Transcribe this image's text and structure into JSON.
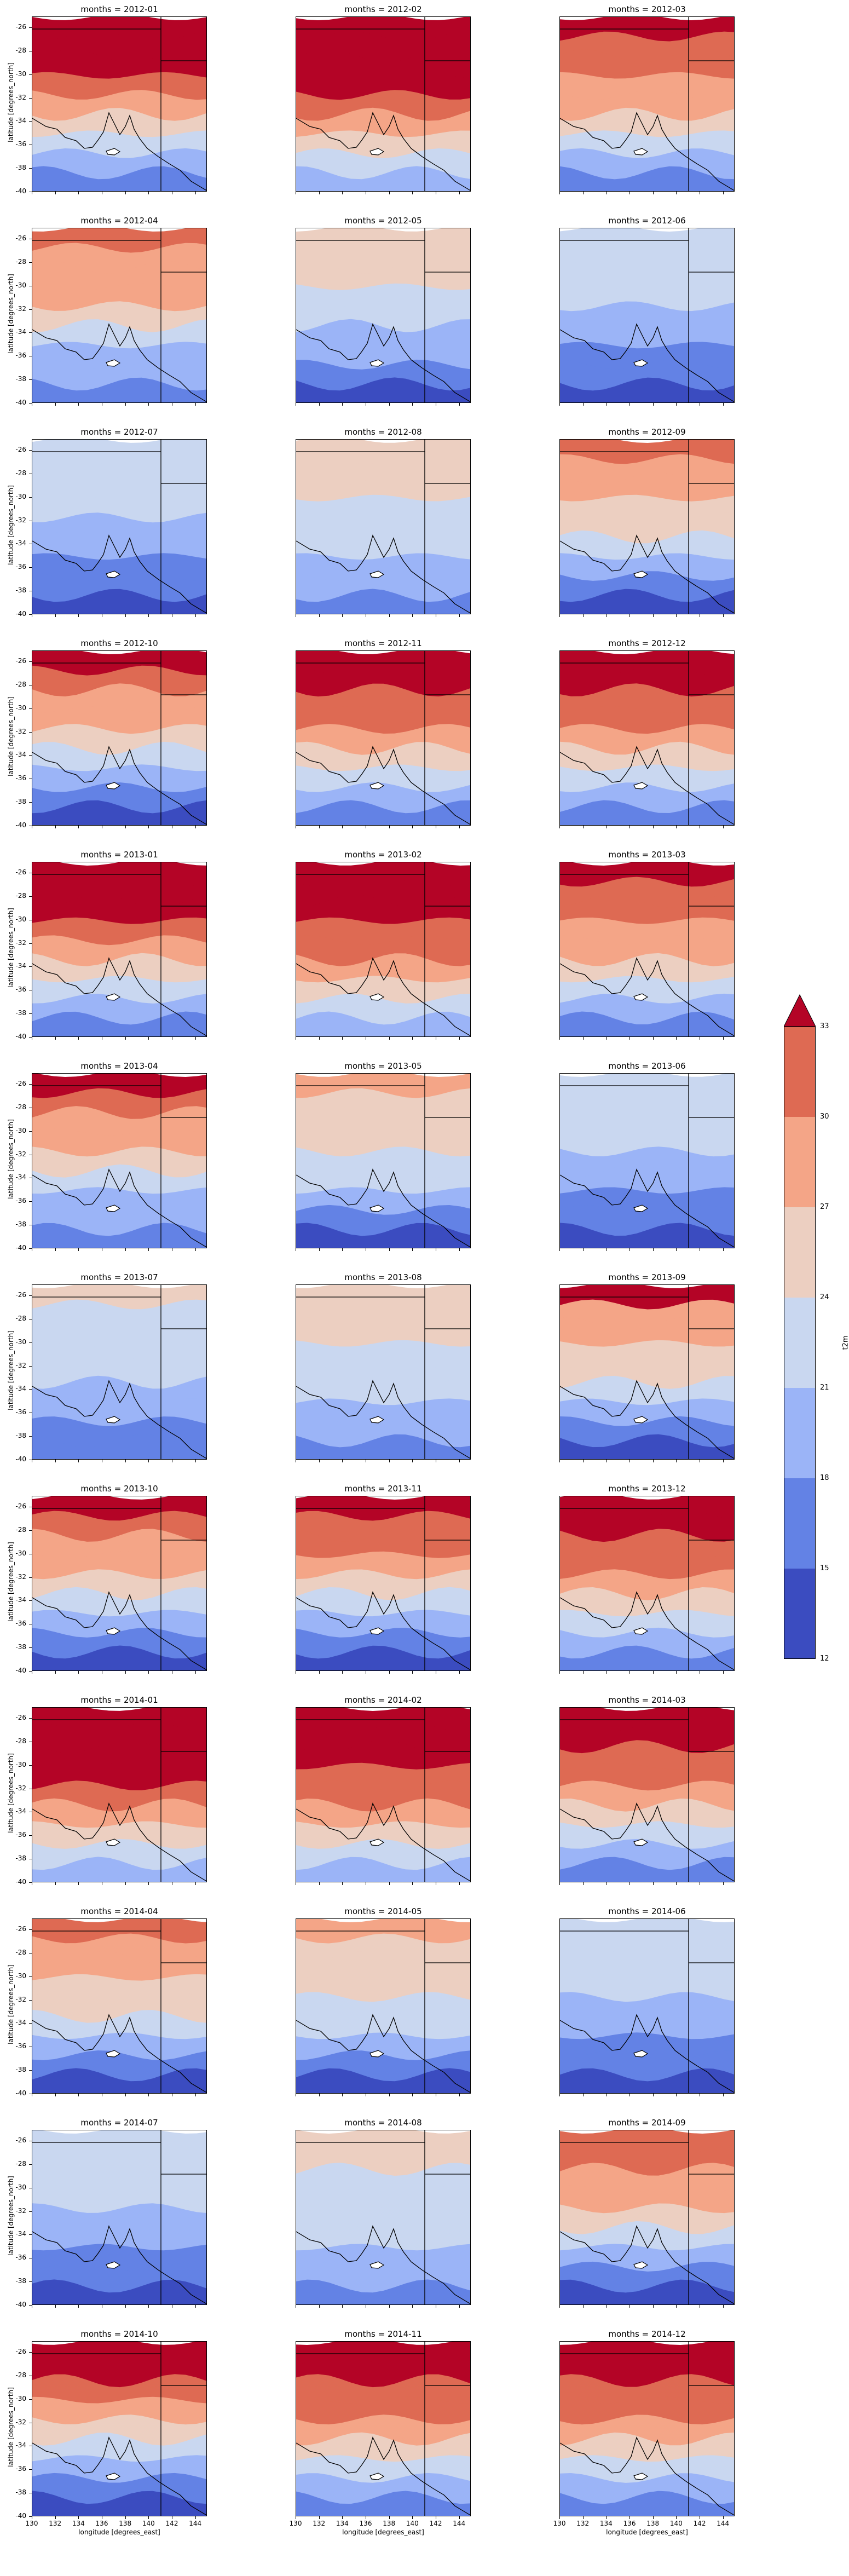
{
  "chart_data": {
    "type": "heatmap",
    "facet_title_prefix": "months = ",
    "months": [
      "2012-01",
      "2012-02",
      "2012-03",
      "2012-04",
      "2012-05",
      "2012-06",
      "2012-07",
      "2012-08",
      "2012-09",
      "2012-10",
      "2012-11",
      "2012-12",
      "2013-01",
      "2013-02",
      "2013-03",
      "2013-04",
      "2013-05",
      "2013-06",
      "2013-07",
      "2013-08",
      "2013-09",
      "2013-10",
      "2013-11",
      "2013-12",
      "2014-01",
      "2014-02",
      "2014-03",
      "2014-04",
      "2014-05",
      "2014-06",
      "2014-07",
      "2014-08",
      "2014-09",
      "2014-10",
      "2014-11",
      "2014-12"
    ],
    "north_south_levels": [
      [
        33,
        33,
        33,
        30,
        27,
        24,
        21,
        18,
        15
      ],
      [
        33,
        33,
        33,
        33,
        30,
        27,
        24,
        21,
        18
      ],
      [
        33,
        30,
        30,
        27,
        27,
        24,
        21,
        18,
        15
      ],
      [
        30,
        27,
        27,
        27,
        24,
        21,
        18,
        18,
        15
      ],
      [
        24,
        24,
        24,
        21,
        21,
        18,
        18,
        15,
        12
      ],
      [
        21,
        21,
        21,
        21,
        18,
        18,
        15,
        15,
        12
      ],
      [
        21,
        21,
        21,
        21,
        18,
        18,
        15,
        15,
        12
      ],
      [
        24,
        24,
        24,
        21,
        21,
        21,
        18,
        18,
        15
      ],
      [
        30,
        27,
        27,
        24,
        24,
        21,
        18,
        15,
        12
      ],
      [
        33,
        30,
        27,
        27,
        24,
        21,
        18,
        15,
        12
      ],
      [
        33,
        33,
        30,
        30,
        27,
        24,
        21,
        18,
        15
      ],
      [
        33,
        33,
        30,
        30,
        27,
        24,
        21,
        18,
        15
      ],
      [
        33,
        33,
        33,
        30,
        27,
        24,
        21,
        18,
        15
      ],
      [
        33,
        33,
        33,
        30,
        30,
        27,
        24,
        21,
        18
      ],
      [
        33,
        30,
        30,
        27,
        27,
        24,
        21,
        18,
        15
      ],
      [
        33,
        30,
        27,
        27,
        24,
        21,
        18,
        18,
        15
      ],
      [
        27,
        24,
        24,
        24,
        21,
        21,
        18,
        15,
        12
      ],
      [
        21,
        21,
        21,
        21,
        18,
        18,
        15,
        15,
        12
      ],
      [
        24,
        21,
        21,
        21,
        21,
        18,
        18,
        15,
        15
      ],
      [
        24,
        24,
        24,
        21,
        21,
        21,
        18,
        18,
        15
      ],
      [
        33,
        27,
        27,
        24,
        24,
        21,
        18,
        15,
        12
      ],
      [
        33,
        30,
        27,
        27,
        24,
        21,
        18,
        15,
        12
      ],
      [
        33,
        30,
        30,
        27,
        24,
        21,
        18,
        15,
        12
      ],
      [
        33,
        33,
        30,
        30,
        27,
        24,
        21,
        18,
        15
      ],
      [
        33,
        33,
        33,
        33,
        30,
        27,
        24,
        21,
        18
      ],
      [
        33,
        33,
        33,
        30,
        30,
        27,
        24,
        21,
        18
      ],
      [
        33,
        33,
        30,
        30,
        27,
        24,
        21,
        18,
        15
      ],
      [
        30,
        27,
        27,
        24,
        24,
        21,
        18,
        15,
        12
      ],
      [
        27,
        24,
        24,
        24,
        21,
        21,
        18,
        15,
        12
      ],
      [
        21,
        21,
        21,
        21,
        18,
        18,
        15,
        15,
        12
      ],
      [
        21,
        21,
        21,
        21,
        18,
        18,
        15,
        15,
        12
      ],
      [
        24,
        24,
        21,
        21,
        21,
        21,
        18,
        18,
        15
      ],
      [
        30,
        30,
        27,
        27,
        24,
        21,
        18,
        15,
        12
      ],
      [
        33,
        33,
        30,
        27,
        24,
        21,
        18,
        15,
        12
      ],
      [
        33,
        33,
        30,
        30,
        27,
        24,
        21,
        18,
        15
      ],
      [
        33,
        33,
        30,
        30,
        27,
        24,
        21,
        18,
        15
      ]
    ],
    "xlim": [
      130,
      145
    ],
    "ylim": [
      -40,
      -25
    ],
    "x_ticks": [
      "130",
      "132",
      "134",
      "136",
      "138",
      "140",
      "142",
      "144"
    ],
    "y_ticks": [
      "-26",
      "-28",
      "-30",
      "-32",
      "-34",
      "-36",
      "-38",
      "-40"
    ],
    "xlabel": "longitude [degrees_east]",
    "ylabel": "latitude [degrees_north]",
    "colorbar": {
      "levels": [
        12,
        15,
        18,
        21,
        24,
        27,
        30,
        33
      ],
      "tick_labels": [
        "12",
        "15",
        "18",
        "21",
        "24",
        "27",
        "30",
        "33"
      ],
      "colors": [
        "#3b4cc0",
        "#6382e5",
        "#9bb4f7",
        "#c9d7f0",
        "#eccfc1",
        "#f4a587",
        "#de6a53",
        "#b40426"
      ],
      "extend": "max",
      "label": "t2m"
    },
    "grid": false,
    "colormap": "coolwarm"
  }
}
